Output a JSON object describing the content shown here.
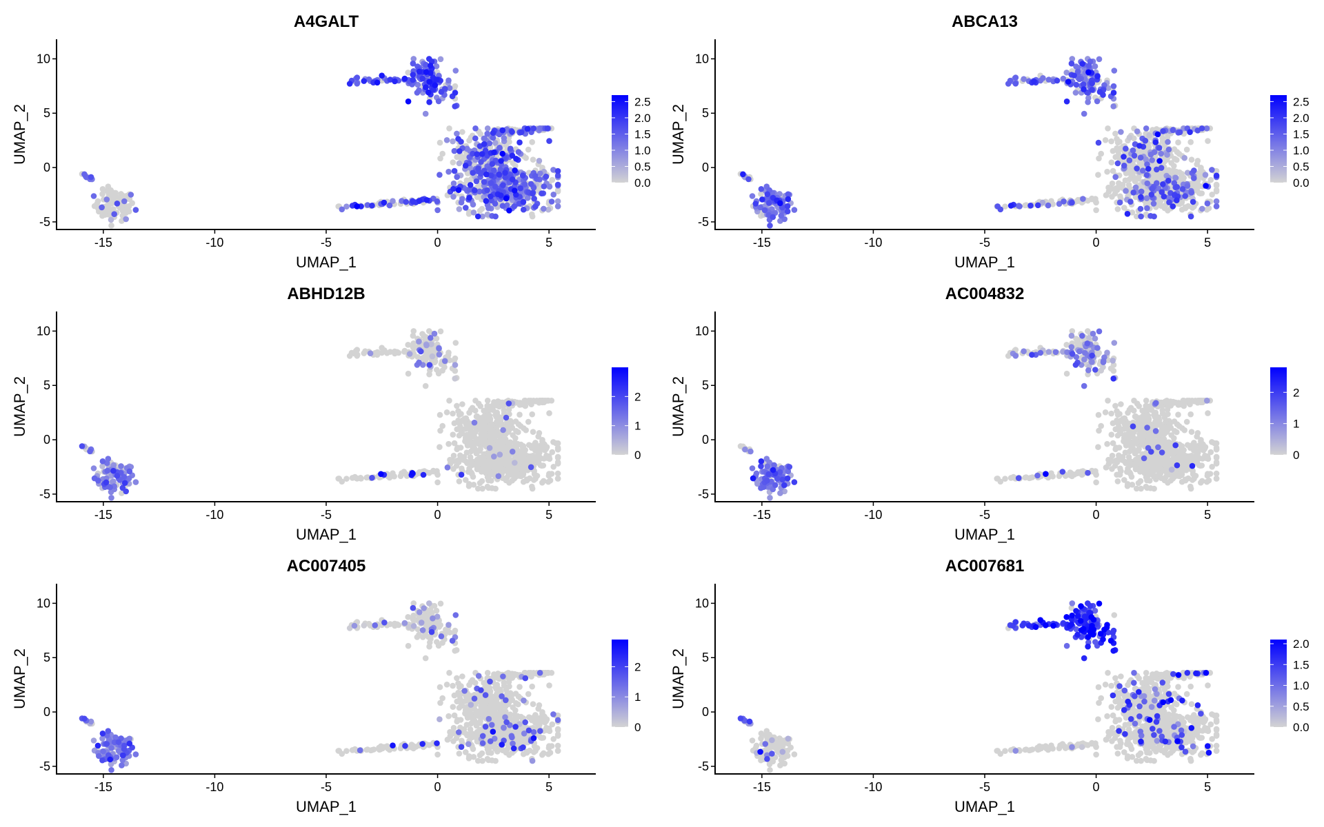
{
  "chart_data": [
    {
      "type": "scatter",
      "title": "A4GALT",
      "xlabel": "UMAP_1",
      "ylabel": "UMAP_2",
      "xlim": [
        -17.1,
        7.1
      ],
      "ylim": [
        -5.7,
        11.8
      ],
      "xticks": [
        -15,
        -10,
        -5,
        0,
        5
      ],
      "yticks": [
        -5,
        0,
        5,
        10
      ],
      "legend": {
        "position": "right",
        "min": 0,
        "max": 2.7,
        "ticks": [
          "0.0",
          "0.5",
          "1.0",
          "1.5",
          "2.0",
          "2.5"
        ],
        "tick_values": [
          0,
          0.5,
          1,
          1.5,
          2,
          2.5
        ]
      },
      "expression": {
        "streak": [
          0.8,
          1.2
        ],
        "left": [
          0.15,
          1.0
        ],
        "bridge": [
          0.4,
          1.6
        ],
        "top": [
          0.95,
          1.5
        ],
        "main": [
          0.5,
          1.3
        ]
      }
    },
    {
      "type": "scatter",
      "title": "ABCA13",
      "xlabel": "UMAP_1",
      "ylabel": "UMAP_2",
      "xlim": [
        -17.1,
        7.1
      ],
      "ylim": [
        -5.7,
        11.8
      ],
      "xticks": [
        -15,
        -10,
        -5,
        0,
        5
      ],
      "yticks": [
        -5,
        0,
        5,
        10
      ],
      "legend": {
        "position": "right",
        "min": 0,
        "max": 2.7,
        "ticks": [
          "0.0",
          "0.5",
          "1.0",
          "1.5",
          "2.0",
          "2.5"
        ],
        "tick_values": [
          0,
          0.5,
          1,
          1.5,
          2,
          2.5
        ]
      },
      "expression": {
        "streak": [
          0.6,
          1.0
        ],
        "left": [
          0.95,
          1.3
        ],
        "bridge": [
          0.3,
          1.5
        ],
        "top": [
          0.85,
          1.3
        ],
        "main": [
          0.2,
          1.2
        ]
      }
    },
    {
      "type": "scatter",
      "title": "ABHD12B",
      "xlabel": "UMAP_1",
      "ylabel": "UMAP_2",
      "xlim": [
        -17.1,
        7.1
      ],
      "ylim": [
        -5.7,
        11.8
      ],
      "xticks": [
        -15,
        -10,
        -5,
        0,
        5
      ],
      "yticks": [
        -5,
        0,
        5,
        10
      ],
      "legend": {
        "position": "right",
        "min": 0,
        "max": 3.0,
        "ticks": [
          "0",
          "1",
          "2"
        ],
        "tick_values": [
          0,
          1,
          2
        ]
      },
      "expression": {
        "streak": [
          0.6,
          1.0
        ],
        "left": [
          0.9,
          1.0
        ],
        "bridge": [
          0.05,
          2.5
        ],
        "top": [
          0.15,
          1.0
        ],
        "main": [
          0.01,
          1.0
        ]
      }
    },
    {
      "type": "scatter",
      "title": "AC004832",
      "xlabel": "UMAP_1",
      "ylabel": "UMAP_2",
      "xlim": [
        -17.1,
        7.1
      ],
      "ylim": [
        -5.7,
        11.8
      ],
      "xticks": [
        -15,
        -10,
        -5,
        0,
        5
      ],
      "yticks": [
        -5,
        0,
        5,
        10
      ],
      "legend": {
        "position": "right",
        "min": 0,
        "max": 2.8,
        "ticks": [
          "0",
          "1",
          "2"
        ],
        "tick_values": [
          0,
          1,
          2
        ]
      },
      "expression": {
        "streak": [
          0.5,
          1.0
        ],
        "left": [
          0.95,
          1.2
        ],
        "bridge": [
          0.08,
          2.0
        ],
        "top": [
          0.4,
          1.0
        ],
        "main": [
          0.02,
          1.5
        ]
      }
    },
    {
      "type": "scatter",
      "title": "AC007405",
      "xlabel": "UMAP_1",
      "ylabel": "UMAP_2",
      "xlim": [
        -17.1,
        7.1
      ],
      "ylim": [
        -5.7,
        11.8
      ],
      "xticks": [
        -15,
        -10,
        -5,
        0,
        5
      ],
      "yticks": [
        -5,
        0,
        5,
        10
      ],
      "legend": {
        "position": "right",
        "min": 0,
        "max": 2.9,
        "ticks": [
          "0",
          "1",
          "2"
        ],
        "tick_values": [
          0,
          1,
          2
        ]
      },
      "expression": {
        "streak": [
          0.6,
          1.0
        ],
        "left": [
          0.95,
          1.2
        ],
        "bridge": [
          0.1,
          2.0
        ],
        "top": [
          0.15,
          0.8
        ],
        "main": [
          0.06,
          1.3
        ]
      }
    },
    {
      "type": "scatter",
      "title": "AC007681",
      "xlabel": "UMAP_1",
      "ylabel": "UMAP_2",
      "xlim": [
        -17.1,
        7.1
      ],
      "ylim": [
        -5.7,
        11.8
      ],
      "xticks": [
        -15,
        -10,
        -5,
        0,
        5
      ],
      "yticks": [
        -5,
        0,
        5,
        10
      ],
      "legend": {
        "position": "right",
        "min": 0,
        "max": 2.1,
        "ticks": [
          "0.0",
          "0.5",
          "1.0",
          "1.5",
          "2.0"
        ],
        "tick_values": [
          0,
          0.5,
          1,
          1.5,
          2
        ]
      },
      "expression": {
        "streak": [
          0.8,
          1.0
        ],
        "left": [
          0.1,
          0.7
        ],
        "bridge": [
          0.05,
          0.8
        ],
        "top": [
          0.9,
          1.5
        ],
        "main": [
          0.1,
          1.3
        ]
      }
    }
  ],
  "colors": {
    "low": "#d3d3d3",
    "high": "#0000ff",
    "axis": "#000000"
  },
  "clusters": {
    "streak": {
      "from": [
        -16.0,
        -0.5
      ],
      "to": [
        -15.5,
        -1.1
      ],
      "n": 8
    },
    "left": {
      "center": [
        -14.5,
        -3.5
      ],
      "spread": [
        0.45,
        0.7
      ],
      "n": 90
    },
    "bridge": {
      "from": [
        -4.5,
        -3.6
      ],
      "to": [
        0.0,
        -3.0
      ],
      "n": 55
    },
    "top": {
      "arm_from": [
        -3.8,
        8.0
      ],
      "arm_to": [
        -1.0,
        8.0
      ],
      "center": [
        -0.3,
        8.0
      ],
      "spread": [
        0.45,
        0.9
      ],
      "n": 150
    },
    "main": {
      "center": [
        3.0,
        -2.0
      ],
      "spread": [
        1.2,
        1.1
      ],
      "upper_center": [
        2.2,
        1.2
      ],
      "arm_to": [
        5.2,
        3.8
      ],
      "n": 750
    }
  }
}
